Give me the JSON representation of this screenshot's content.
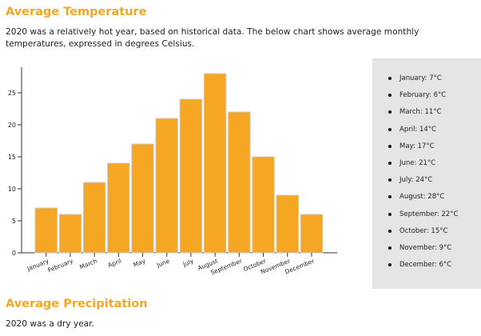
{
  "section1": {
    "title": "Average Temperature",
    "description": "2020 was a relatively hot year, based on historical data. The below chart shows average monthly temperatures, expressed in degrees Celsius."
  },
  "section2": {
    "title": "Average Precipitation",
    "description": "2020 was a dry year."
  },
  "legend_items": [
    "January: 7°C",
    "February: 6°C",
    "March: 11°C",
    "April: 14°C",
    "May: 17°C",
    "June: 21°C",
    "July: 24°C",
    "August: 28°C",
    "September: 22°C",
    "October: 15°C",
    "November: 9°C",
    "December: 6°C"
  ],
  "colors": {
    "bar": "#f5a623",
    "bar_stroke": "#cccccc",
    "heading": "#f5a623",
    "panel": "#e5e5e5"
  },
  "chart_data": {
    "type": "bar",
    "categories": [
      "January",
      "February",
      "March",
      "April",
      "May",
      "June",
      "July",
      "August",
      "September",
      "October",
      "November",
      "December"
    ],
    "values": [
      7,
      6,
      11,
      14,
      17,
      21,
      24,
      28,
      22,
      15,
      9,
      6
    ],
    "ylim": [
      0,
      29
    ],
    "yticks": [
      0,
      5,
      10,
      15,
      20,
      25
    ],
    "grid": false,
    "title": "",
    "xlabel": "",
    "ylabel": ""
  }
}
